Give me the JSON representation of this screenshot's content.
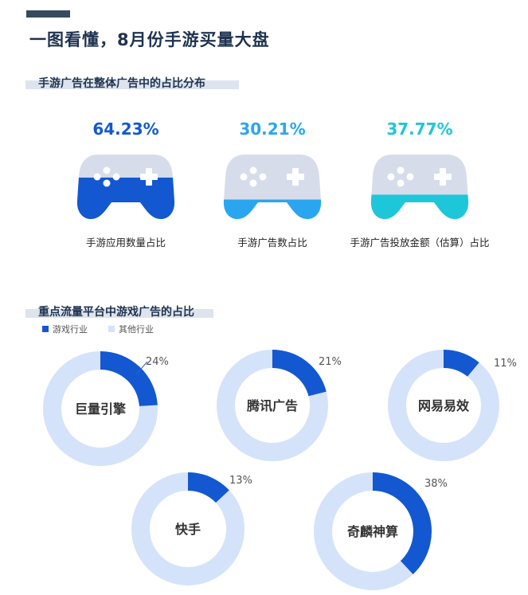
{
  "page_title": "一图看懂，8月份手游买量大盘",
  "section1": {
    "title": "手游广告在整体广告中的占比分布"
  },
  "section2": {
    "title": "重点流量平台中游戏广告的占比"
  },
  "legend": [
    {
      "label": "游戏行业",
      "color": "#1358d0"
    },
    {
      "label": "其他行业",
      "color": "#d4e3fa"
    }
  ],
  "colors": {
    "controller_base": "#d6dcea",
    "donut_bg": "#d4e3fa",
    "donut_fg": "#1358d0",
    "title": "#1f3350"
  },
  "chart_data": [
    {
      "type": "bar",
      "title": "手游广告在整体广告中的占比分布",
      "categories": [
        "手游应用数量占比",
        "手游广告数占比",
        "手游广告投放金额（估算）占比"
      ],
      "values": [
        64.23,
        30.21,
        37.77
      ],
      "value_labels": [
        "64.23%",
        "30.21%",
        "37.77%"
      ],
      "colors": [
        "#1358d0",
        "#2aa6f0",
        "#1dc7d9"
      ],
      "ylim": [
        0,
        100
      ]
    },
    {
      "type": "pie",
      "title": "重点流量平台中游戏广告的占比",
      "categories": [
        "巨量引擎",
        "腾讯广告",
        "网易易效",
        "快手",
        "奇麟神算"
      ],
      "values": [
        24,
        21,
        11,
        13,
        38
      ],
      "value_labels": [
        "24%",
        "21%",
        "11%",
        "13%",
        "38%"
      ],
      "series": [
        {
          "name": "游戏行业",
          "values": [
            24,
            21,
            11,
            13,
            38
          ]
        },
        {
          "name": "其他行业",
          "values": [
            76,
            79,
            89,
            87,
            62
          ]
        }
      ]
    }
  ]
}
